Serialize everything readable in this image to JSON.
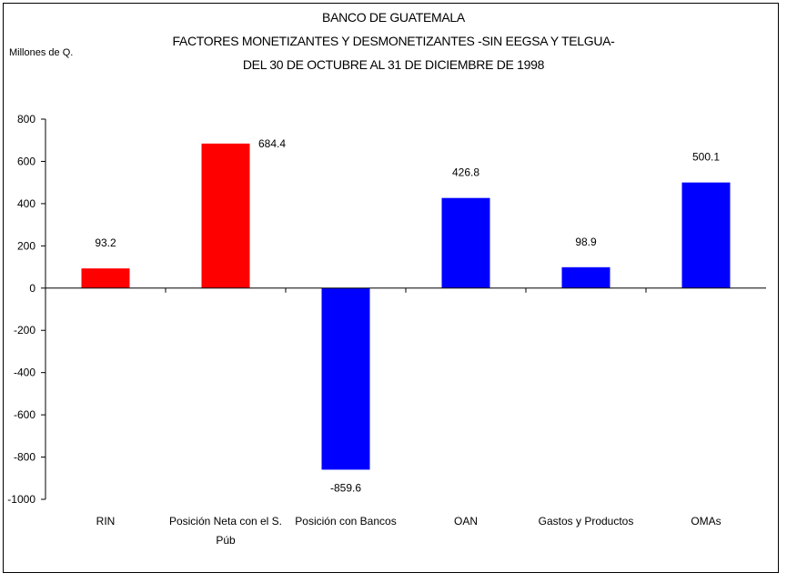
{
  "chart_data": {
    "type": "bar",
    "title": [
      "BANCO DE GUATEMALA",
      "FACTORES MONETIZANTES Y DESMONETIZANTES -SIN EEGSA Y TELGUA-",
      "DEL 30 DE OCTUBRE AL 31 DE DICIEMBRE  DE 1998"
    ],
    "ylabel": "Millones de Q.",
    "xlabel": "",
    "ylim": [
      -1000,
      800
    ],
    "yticks": [
      800,
      600,
      400,
      200,
      0,
      -200,
      -400,
      -600,
      -800,
      -1000
    ],
    "ytick_labels": [
      "800",
      "600",
      "400",
      "200",
      "0",
      "-200",
      "-400",
      "-600",
      "-800",
      "-1000"
    ],
    "categories": [
      [
        "RIN"
      ],
      [
        "Posición Neta con el S.",
        "Púb"
      ],
      [
        "Posición con Bancos"
      ],
      [
        "OAN"
      ],
      [
        "Gastos y Productos"
      ],
      [
        "OMAs"
      ]
    ],
    "values": [
      93.2,
      684.4,
      -859.6,
      426.8,
      98.9,
      500.1
    ],
    "data_labels": [
      "93.2",
      "684.4",
      "-859.6",
      "426.8",
      "98.9",
      "500.1"
    ],
    "colors": [
      "#ff0000",
      "#ff0000",
      "#0000ff",
      "#0000ff",
      "#0000ff",
      "#0000ff"
    ],
    "grid": false,
    "legend": "none"
  }
}
